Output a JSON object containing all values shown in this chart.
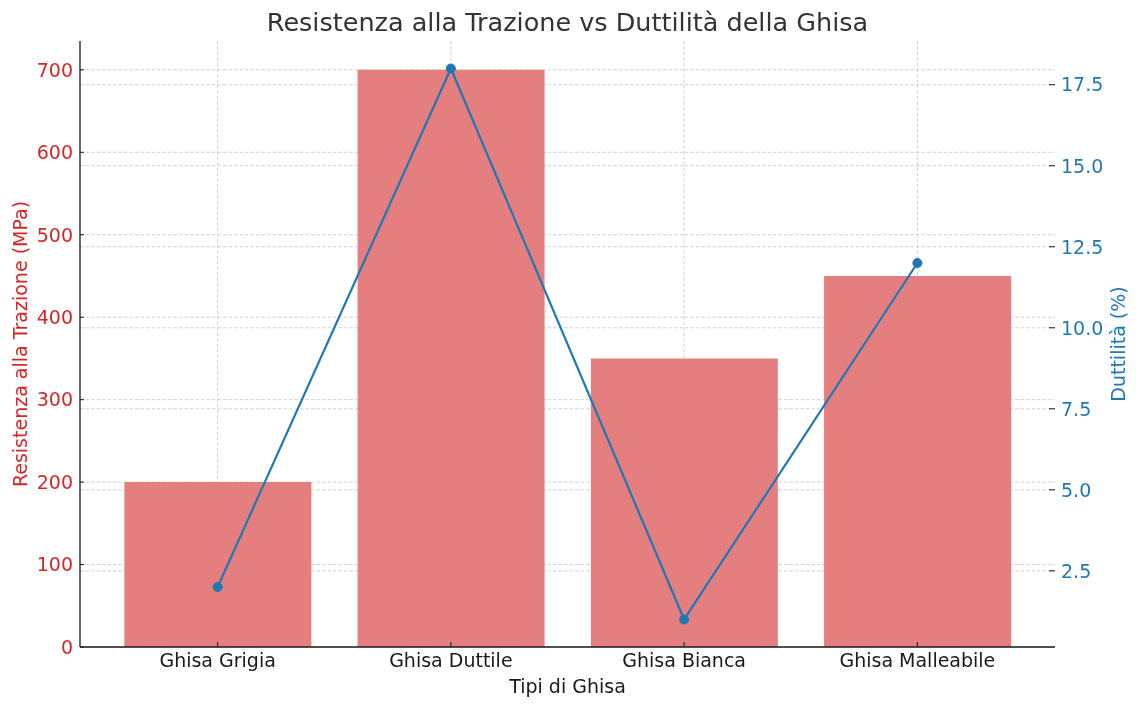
{
  "chart_data": {
    "type": "bar",
    "title": "Resistenza alla Trazione vs Duttilità della Ghisa",
    "xlabel": "Tipi di Ghisa",
    "ylabel": "Resistenza alla Trazione (MPa)",
    "y2label": "Duttilità (%)",
    "categories": [
      "Ghisa Grigia",
      "Ghisa Duttile",
      "Ghisa Bianca",
      "Ghisa Malleabile"
    ],
    "series": [
      {
        "color": "#e57e7e",
        "values": [
          200,
          700,
          350,
          450
        ]
      },
      {
        "type": "line",
        "axis": "y2",
        "color": "#1f77b4",
        "values": [
          2,
          18,
          1,
          12
        ],
        "marker": "circle"
      }
    ],
    "ylim": [
      0,
      735
    ],
    "yticks": [
      0,
      100,
      200,
      300,
      400,
      500,
      600,
      700
    ],
    "y2lim": [
      0.15,
      18.85
    ],
    "y2ticks": [
      2.5,
      {
        "value": 5,
        "label": "5.0"
      },
      7.5,
      {
        "value": 10,
        "label": "10.0"
      },
      12.5,
      {
        "value": 15,
        "label": "15.0"
      },
      17.5
    ],
    "grid": true
  }
}
